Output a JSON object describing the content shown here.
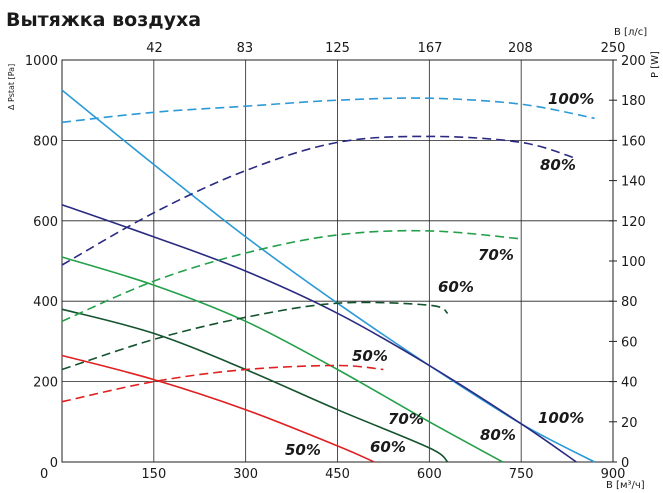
{
  "chart_data": {
    "type": "line",
    "title": "Вытяжка воздуха",
    "xlabel": "В [м³/ч]",
    "x2label": "В [л/с]",
    "ylabel": "Δ Pstat [Pa]",
    "y2label": "P [W]",
    "xlim": [
      0,
      900
    ],
    "ylim": [
      0,
      1000
    ],
    "y2lim": [
      0,
      200
    ],
    "x_ticks": [
      0,
      150,
      300,
      450,
      600,
      750,
      900
    ],
    "x_tick_labels": [
      "0",
      "150",
      "300",
      "450",
      "600",
      "750",
      "900"
    ],
    "x2_ticks": [
      151.2,
      298.8,
      450,
      601.2,
      748.8,
      900
    ],
    "x2_tick_labels": [
      "42",
      "83",
      "125",
      "167",
      "208",
      "250"
    ],
    "y_ticks": [
      0,
      200,
      400,
      600,
      800,
      1000
    ],
    "y2_ticks": [
      0,
      20,
      40,
      60,
      80,
      100,
      120,
      140,
      160,
      180,
      200
    ],
    "grid": true,
    "pressure_series": [
      {
        "label": "100%",
        "color": "#2c9ad6",
        "x": [
          0,
          150,
          300,
          450,
          600,
          750,
          870
        ],
        "y": [
          925,
          740,
          560,
          395,
          240,
          95,
          0
        ]
      },
      {
        "label": "80%",
        "color": "#2a2a82",
        "x": [
          0,
          150,
          300,
          450,
          600,
          750,
          840
        ],
        "y": [
          640,
          560,
          475,
          370,
          240,
          95,
          0
        ]
      },
      {
        "label": "70%",
        "color": "#23a04a",
        "x": [
          0,
          150,
          300,
          450,
          600,
          720
        ],
        "y": [
          510,
          440,
          350,
          230,
          100,
          0
        ]
      },
      {
        "label": "60%",
        "color": "#14532d",
        "x": [
          0,
          150,
          300,
          450,
          600,
          630
        ],
        "y": [
          380,
          320,
          230,
          130,
          35,
          0
        ]
      },
      {
        "label": "50%",
        "color": "#e02020",
        "x": [
          0,
          150,
          300,
          450,
          510
        ],
        "y": [
          265,
          205,
          130,
          40,
          0
        ]
      }
    ],
    "power_series": [
      {
        "label": "100%",
        "color": "#2c9ad6",
        "x": [
          0,
          150,
          300,
          450,
          600,
          750,
          870
        ],
        "y": [
          169,
          174,
          177,
          180,
          181,
          178,
          171
        ]
      },
      {
        "label": "80%",
        "color": "#2a2a82",
        "x": [
          0,
          150,
          300,
          450,
          600,
          750,
          840
        ],
        "y": [
          98,
          124,
          145,
          159,
          162,
          159,
          151
        ]
      },
      {
        "label": "70%",
        "color": "#23a04a",
        "x": [
          0,
          150,
          300,
          450,
          600,
          750
        ],
        "y": [
          70,
          90,
          104,
          113,
          115,
          111
        ]
      },
      {
        "label": "60%",
        "color": "#14532d",
        "x": [
          0,
          150,
          300,
          450,
          600,
          630
        ],
        "y": [
          46,
          61,
          72,
          79,
          78,
          74
        ]
      },
      {
        "label": "50%",
        "color": "#e02020",
        "x": [
          0,
          150,
          300,
          450,
          525
        ],
        "y": [
          30,
          40,
          46,
          48,
          46
        ]
      }
    ]
  }
}
